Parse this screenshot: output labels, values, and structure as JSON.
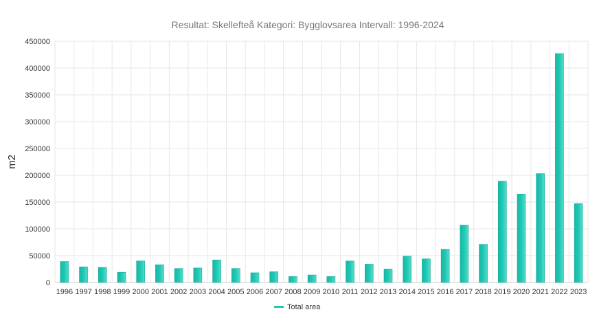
{
  "chart_data": {
    "type": "bar",
    "title": "Resultat: Skellefteå Kategori: Bygglovsarea Intervall: 1996-2024",
    "xlabel": "",
    "ylabel": "m2",
    "ylim": [
      0,
      450000
    ],
    "yticks": [
      0,
      50000,
      100000,
      150000,
      200000,
      250000,
      300000,
      350000,
      400000,
      450000
    ],
    "grid": true,
    "legend_position": "bottom",
    "categories": [
      "1996",
      "1997",
      "1998",
      "1999",
      "2000",
      "2001",
      "2002",
      "2003",
      "2004",
      "2005",
      "2006",
      "2007",
      "2008",
      "2009",
      "2010",
      "2011",
      "2012",
      "2013",
      "2014",
      "2015",
      "2016",
      "2017",
      "2018",
      "2019",
      "2020",
      "2021",
      "2022",
      "2023"
    ],
    "series": [
      {
        "name": "Total area",
        "color": "#1fc9b4",
        "values": [
          39000,
          29000,
          28000,
          19000,
          40000,
          33000,
          26000,
          27000,
          42000,
          26000,
          18000,
          20000,
          11000,
          14000,
          11000,
          40000,
          34000,
          25000,
          49000,
          44000,
          62000,
          107000,
          71000,
          189000,
          165000,
          203000,
          427000,
          147000
        ]
      }
    ]
  }
}
